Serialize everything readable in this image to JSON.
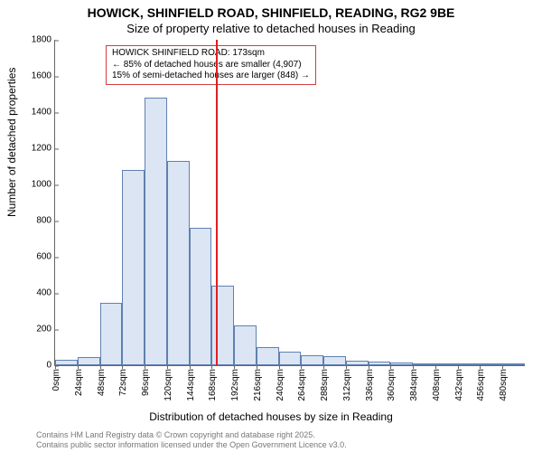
{
  "title_line1": "HOWICK, SHINFIELD ROAD, SHINFIELD, READING, RG2 9BE",
  "title_line2": "Size of property relative to detached houses in Reading",
  "ylabel": "Number of detached properties",
  "xlabel": "Distribution of detached houses by size in Reading",
  "footer_line1": "Contains HM Land Registry data © Crown copyright and database right 2025.",
  "footer_line2": "Contains public sector information licensed under the Open Government Licence v3.0.",
  "chart": {
    "type": "histogram",
    "ylim": [
      0,
      1800
    ],
    "ytick_step": 200,
    "x_bin_width": 24,
    "x_bins": [
      0,
      24,
      48,
      72,
      96,
      120,
      144,
      168,
      192,
      216,
      240,
      264,
      288,
      312,
      336,
      360,
      384,
      408,
      432,
      456,
      480
    ],
    "x_unit": "sqm",
    "values": [
      30,
      45,
      345,
      1080,
      1480,
      1130,
      760,
      440,
      220,
      100,
      75,
      55,
      50,
      25,
      20,
      15,
      10,
      5,
      3,
      2,
      1
    ],
    "bar_fill": "#dbe5f4",
    "bar_border": "#6080b0",
    "background_color": "#ffffff",
    "axis_color": "#666666",
    "marker_line": {
      "x": 173,
      "color": "#e02020"
    },
    "annotation": {
      "border_color": "#d04040",
      "lines": [
        "HOWICK SHINFIELD ROAD: 173sqm",
        "← 85% of detached houses are smaller (4,907)",
        "15% of semi-detached houses are larger (848) →"
      ]
    },
    "title_fontsize": 14,
    "label_fontsize": 12,
    "tick_fontsize": 10
  }
}
